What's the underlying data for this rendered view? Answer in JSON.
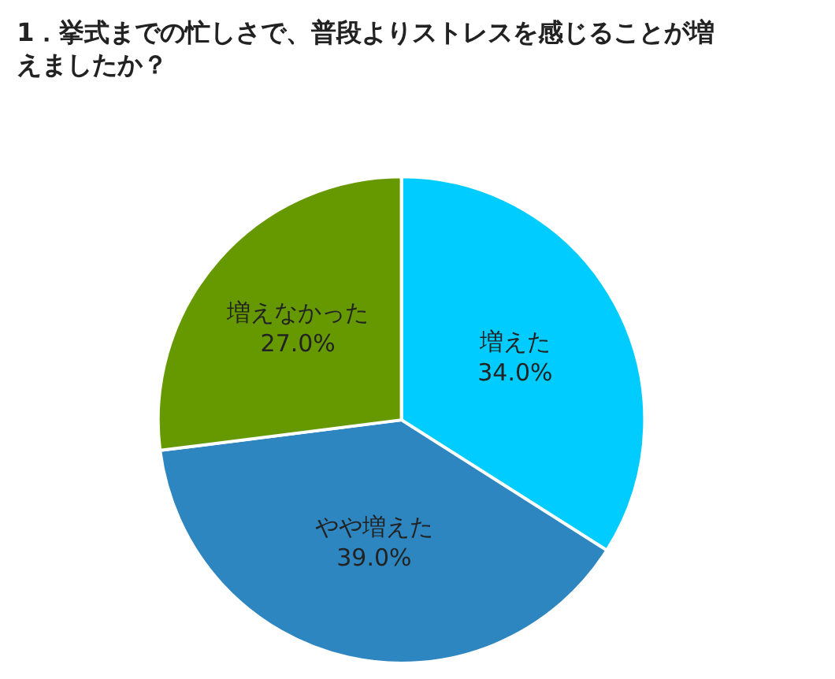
{
  "chart_data": {
    "type": "pie",
    "title": "1．挙式までの忙しさで、普段よりストレスを感じることが増えましたか？",
    "categories": [
      "増えた",
      "やや増えた",
      "増えなかった"
    ],
    "values": [
      34.0,
      39.0,
      27.0
    ],
    "value_labels": [
      "34.0%",
      "39.0%",
      "27.0%"
    ],
    "colors": [
      "#00ccff",
      "#2e86c1",
      "#669900"
    ],
    "legend": false
  }
}
